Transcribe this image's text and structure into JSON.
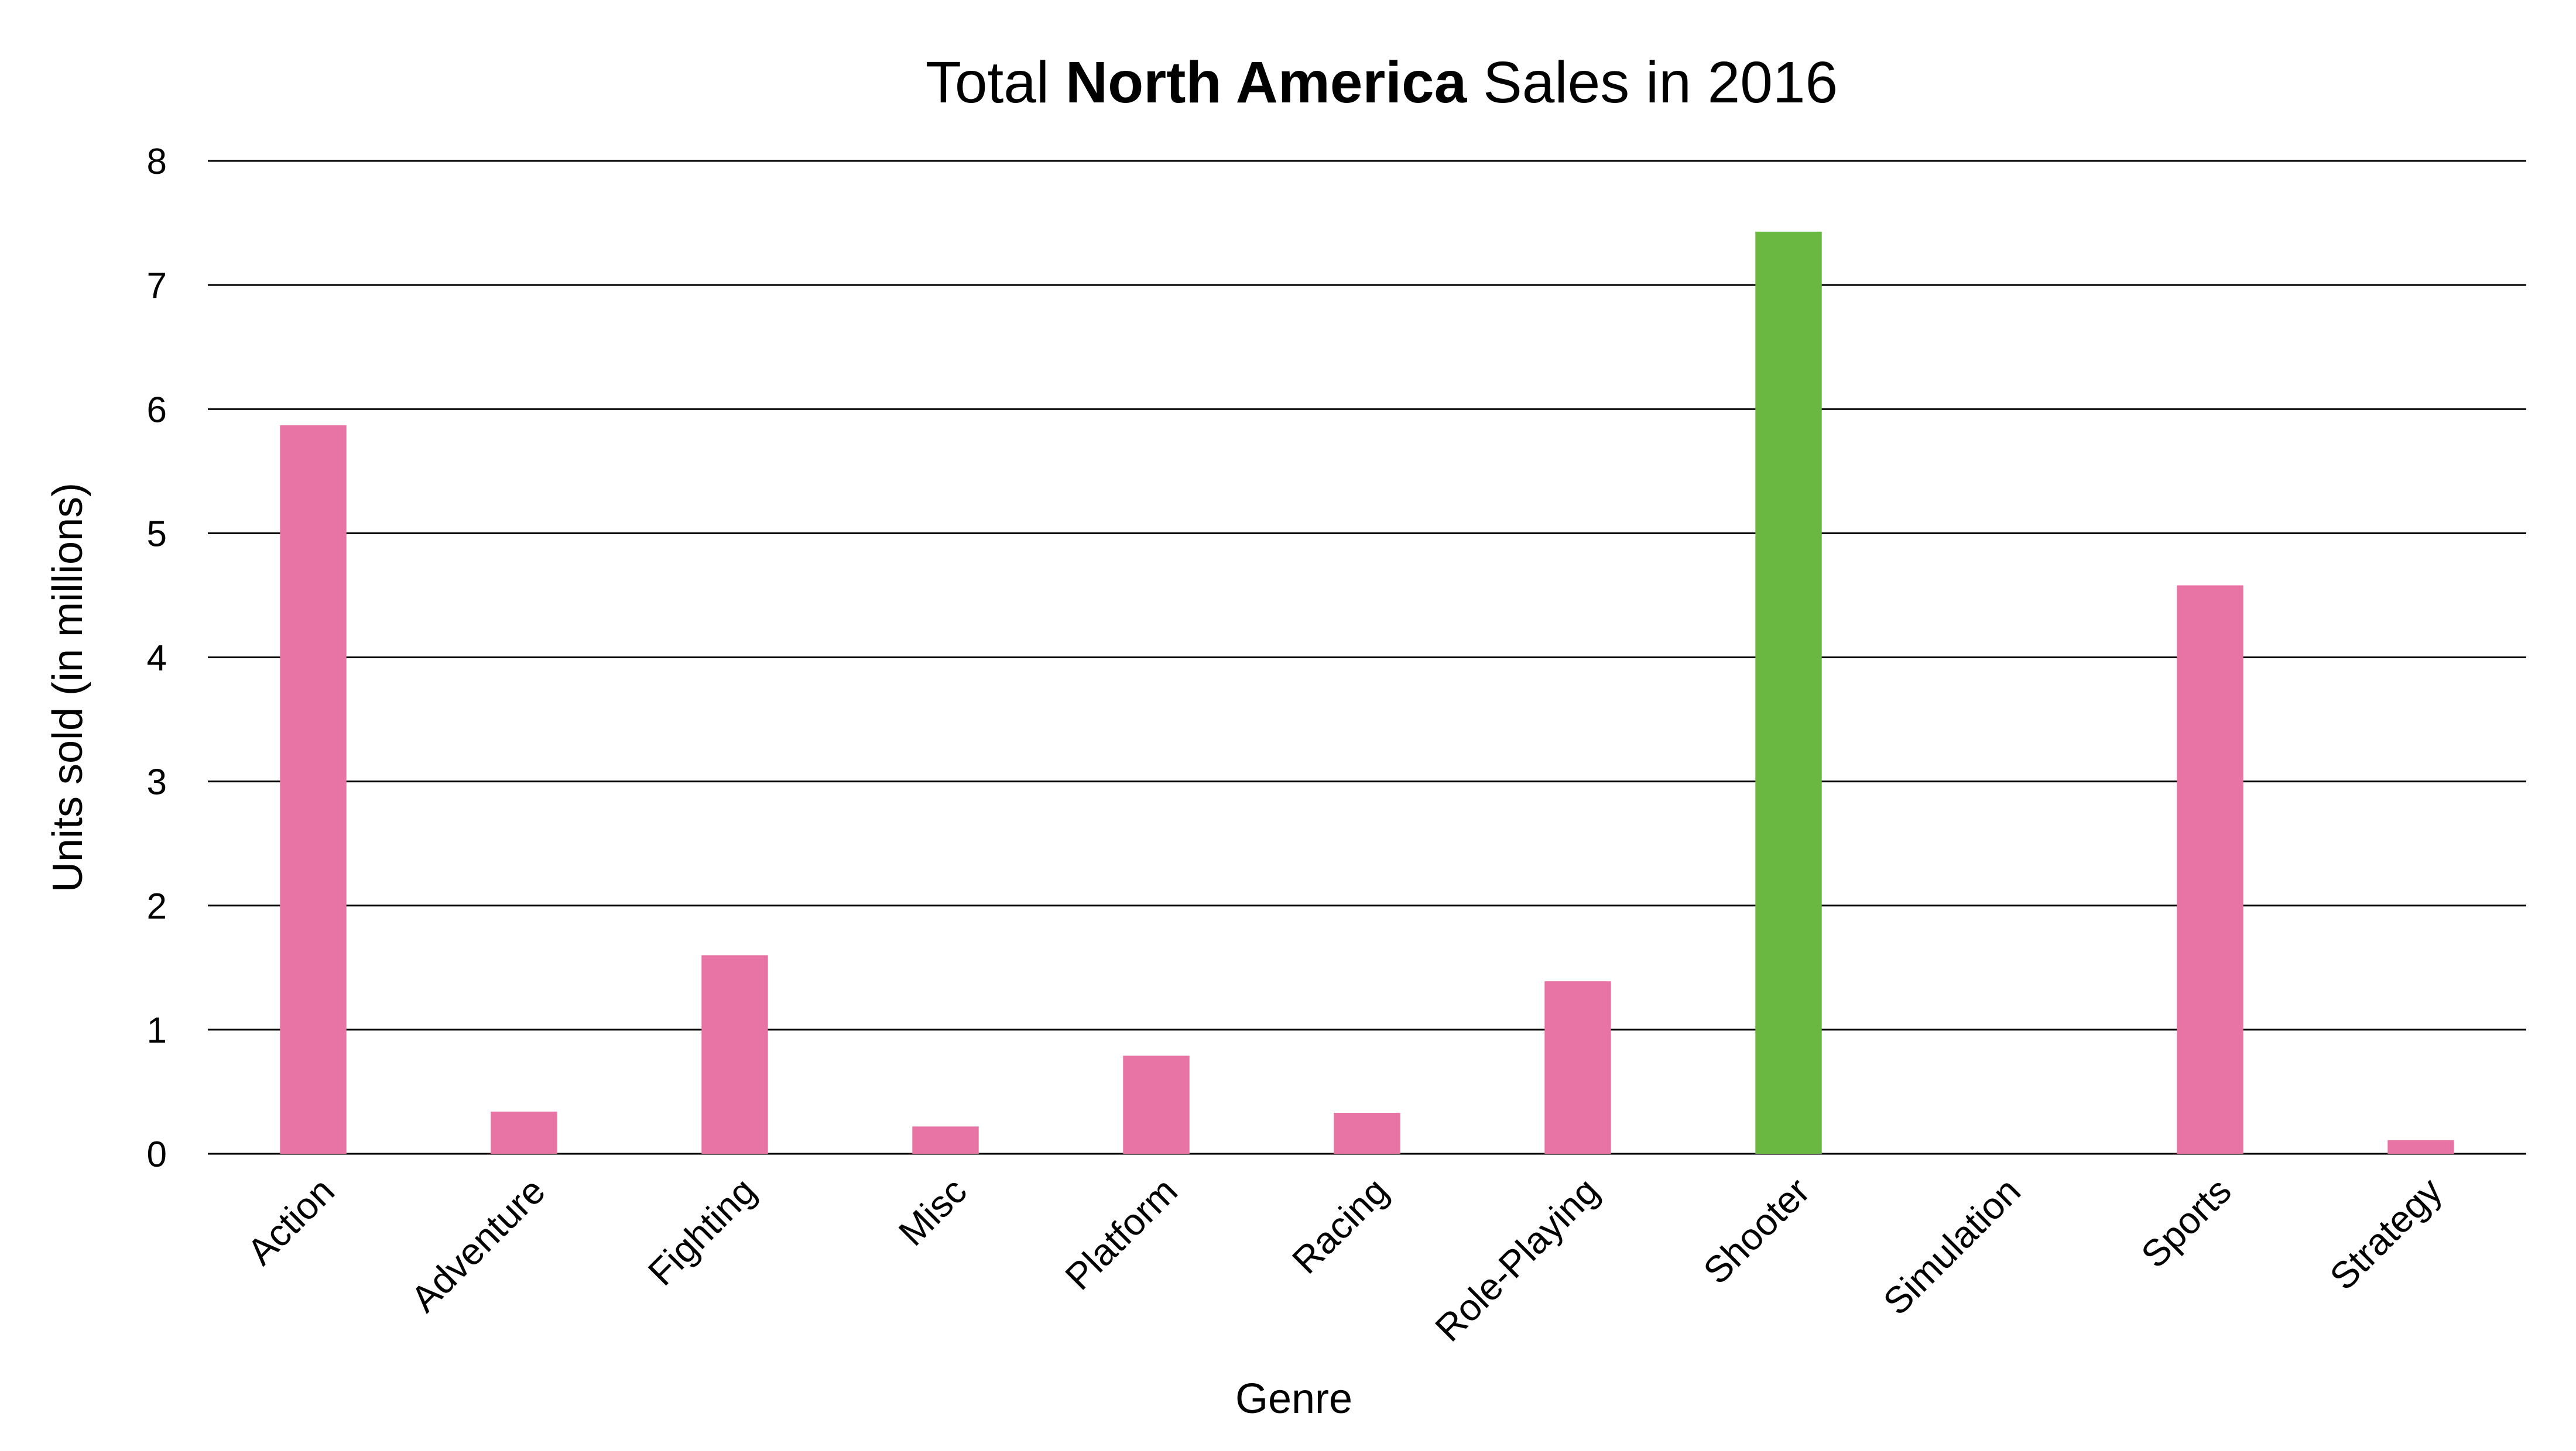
{
  "chart_data": {
    "type": "bar",
    "title": {
      "prefix": "Total ",
      "emphasis": "North America",
      "suffix": " Sales in 2016"
    },
    "xlabel": "Genre",
    "ylabel": "Units sold (in millions)",
    "ylim": [
      0,
      8
    ],
    "yticks": [
      0,
      1,
      2,
      3,
      4,
      5,
      6,
      7,
      8
    ],
    "grid": true,
    "categories": [
      "Action",
      "Adventure",
      "Fighting",
      "Misc",
      "Platform",
      "Racing",
      "Role-Playing",
      "Shooter",
      "Simulation",
      "Sports",
      "Strategy"
    ],
    "values": [
      5.87,
      0.34,
      1.6,
      0.22,
      0.79,
      0.33,
      1.39,
      7.43,
      0.0,
      4.58,
      0.11
    ],
    "highlight_category": "Shooter",
    "colors": {
      "bar": "#E874A6",
      "highlight": "#6AB741",
      "grid": "#000000"
    }
  }
}
